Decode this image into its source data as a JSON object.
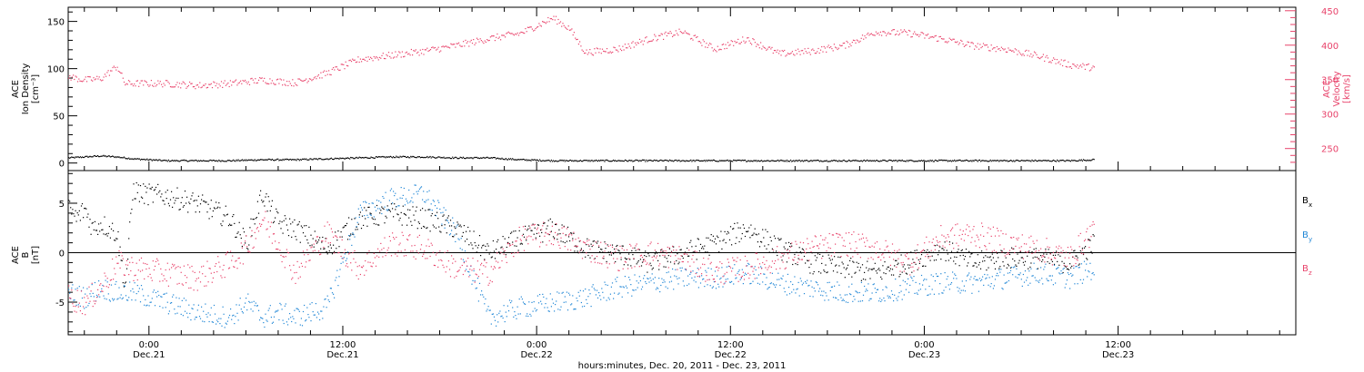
{
  "chart_data": [
    {
      "type": "scatter",
      "panel": "top",
      "ylabel_left": [
        "ACE",
        "Ion Density",
        "[cm⁻³]"
      ],
      "ylabel_right": [
        "ACE",
        "Velocity",
        "[km/s]"
      ],
      "ylim_left": [
        -8,
        165
      ],
      "yticks_left": [
        0,
        50,
        100,
        150
      ],
      "ylim_right": [
        218,
        455
      ],
      "yticks_right": [
        250,
        300,
        350,
        400,
        450
      ],
      "series": [
        {
          "axis": "left",
          "color": "#000000",
          "x_hours": [
            0,
            1,
            2,
            3,
            4,
            6,
            8,
            10,
            12,
            14,
            16,
            18,
            20,
            22,
            24,
            26,
            28,
            30,
            32,
            34,
            36,
            38,
            40,
            42,
            44,
            46,
            48,
            50,
            52,
            54,
            56,
            58,
            60,
            62,
            63.5
          ],
          "values": [
            6,
            7,
            8,
            7,
            5,
            3,
            3,
            3,
            4,
            4,
            5,
            6,
            7,
            7,
            6,
            6,
            4,
            3,
            3,
            3,
            3,
            3,
            3,
            3,
            3,
            3,
            3,
            3,
            3,
            3,
            3,
            3,
            3,
            3,
            4
          ]
        },
        {
          "axis": "right",
          "color": "#e8426a",
          "x_hours": [
            0,
            1,
            2,
            3,
            3.5,
            4,
            6,
            8,
            10,
            12,
            14,
            16,
            18,
            20,
            22,
            24,
            26,
            28,
            30,
            31,
            32,
            34,
            36,
            38,
            40,
            42,
            44,
            46,
            48,
            50,
            52,
            54,
            56,
            58,
            60,
            62,
            63.5
          ],
          "values": [
            355,
            350,
            352,
            370,
            345,
            345,
            345,
            342,
            345,
            350,
            346,
            360,
            380,
            386,
            392,
            400,
            410,
            418,
            440,
            425,
            390,
            395,
            410,
            420,
            395,
            410,
            388,
            392,
            400,
            420,
            418,
            410,
            400,
            395,
            385,
            372,
            368
          ]
        }
      ]
    },
    {
      "type": "scatter",
      "panel": "bottom",
      "ylabel": [
        "ACE",
        "B",
        "[nT]"
      ],
      "ylim": [
        -8.3,
        8.3
      ],
      "yticks": [
        -5,
        0,
        5
      ],
      "series": [
        {
          "name": "B",
          "name_sub": "x",
          "color": "#000000",
          "x_hours": [
            0,
            0.5,
            1,
            1.5,
            2,
            3,
            3.5,
            4,
            4.5,
            6,
            8,
            10,
            11,
            12,
            13,
            14,
            16,
            18,
            20,
            22,
            24,
            26,
            28,
            30,
            32,
            34,
            36,
            38,
            40,
            42,
            44,
            46,
            48,
            50,
            52,
            54,
            56,
            58,
            60,
            62,
            63.5
          ],
          "values": [
            4.5,
            3.5,
            4.5,
            2.5,
            3.0,
            2.0,
            -3.5,
            6.5,
            6.0,
            5.8,
            5.0,
            3.5,
            1.0,
            6.0,
            3.0,
            2.5,
            0.5,
            3.5,
            4.0,
            3.5,
            2.5,
            0.0,
            1.5,
            2.5,
            0.5,
            0.0,
            -1.0,
            0.0,
            1.0,
            2.5,
            0.5,
            -1.0,
            -1.5,
            -2.0,
            -1.0,
            0.5,
            -1.0,
            -0.5,
            -0.5,
            -1.0,
            1.0
          ]
        },
        {
          "name": "B",
          "name_sub": "y",
          "color": "#1f86d6",
          "x_hours": [
            0,
            1,
            2,
            3,
            4,
            6,
            8,
            10,
            11,
            12,
            13,
            14,
            16,
            18,
            20,
            22,
            24,
            26,
            28,
            30,
            32,
            34,
            36,
            38,
            40,
            42,
            44,
            46,
            48,
            50,
            52,
            54,
            56,
            58,
            60,
            62,
            63.5
          ],
          "values": [
            -4.0,
            -4.5,
            -3.5,
            -4.0,
            -4.0,
            -5.0,
            -6.0,
            -6.5,
            -5.0,
            -6.5,
            -6.0,
            -6.5,
            -5.5,
            4.0,
            5.5,
            6.0,
            2.0,
            -6.5,
            -5.5,
            -5.0,
            -4.5,
            -3.5,
            -3.0,
            -2.5,
            -2.5,
            -2.0,
            -3.0,
            -3.5,
            -4.0,
            -4.0,
            -3.5,
            -3.0,
            -3.0,
            -2.5,
            -2.0,
            -2.5,
            -1.5
          ]
        },
        {
          "name": "B",
          "name_sub": "z",
          "color": "#e8426a",
          "x_hours": [
            0,
            1,
            2,
            3,
            4,
            6,
            8,
            10,
            11,
            12,
            13,
            14,
            16,
            18,
            20,
            22,
            24,
            26,
            28,
            30,
            32,
            34,
            36,
            38,
            40,
            42,
            44,
            46,
            48,
            50,
            52,
            54,
            56,
            58,
            60,
            62,
            63.5
          ],
          "values": [
            -4.5,
            -5.0,
            -3.5,
            -1.0,
            -1.5,
            -2.0,
            -2.5,
            -1.0,
            0.5,
            3.5,
            1.0,
            -2.0,
            2.0,
            -1.5,
            1.0,
            0.5,
            -1.5,
            -2.0,
            1.5,
            2.0,
            0.5,
            -0.5,
            0.0,
            -0.5,
            -2.0,
            -1.5,
            -0.5,
            0.5,
            1.0,
            0.5,
            -1.0,
            1.5,
            2.0,
            1.0,
            0.5,
            -0.5,
            2.5
          ]
        }
      ]
    }
  ],
  "x_axis": {
    "ticks": [
      {
        "hour": 5,
        "time": "0:00",
        "date": "Dec.21"
      },
      {
        "hour": 17,
        "time": "12:00",
        "date": "Dec.21"
      },
      {
        "hour": 29,
        "time": "0:00",
        "date": "Dec.22"
      },
      {
        "hour": 41,
        "time": "12:00",
        "date": "Dec.22"
      },
      {
        "hour": 53,
        "time": "0:00",
        "date": "Dec.23"
      },
      {
        "hour": 65,
        "time": "12:00",
        "date": "Dec.23"
      }
    ],
    "xlim_hours": [
      0,
      76
    ],
    "xlabel": "hours:minutes, Dec. 20, 2011 - Dec. 23, 2011"
  }
}
